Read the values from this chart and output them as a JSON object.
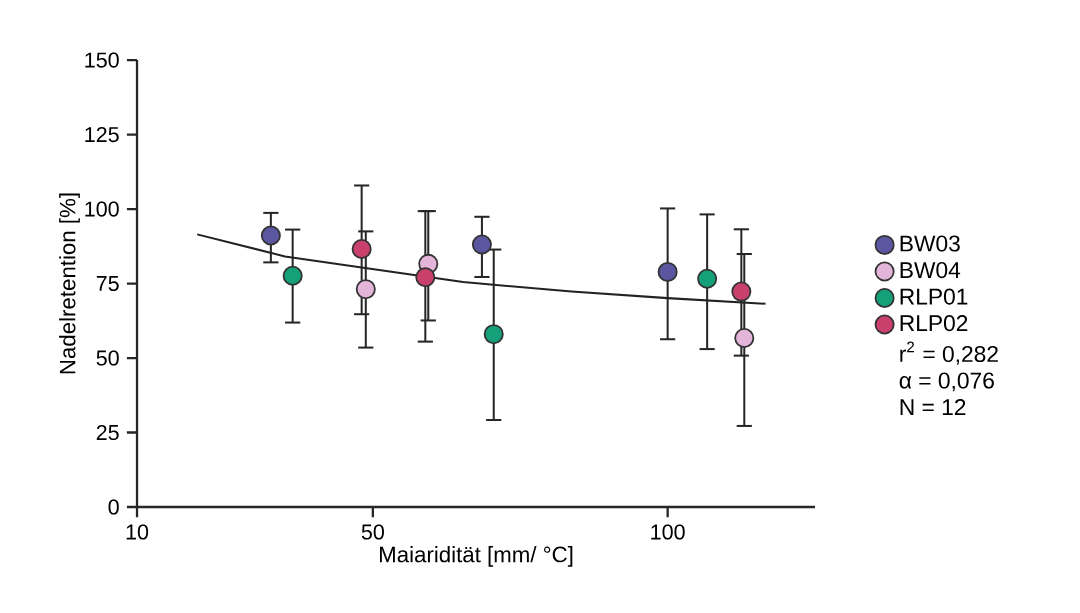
{
  "chart_data": {
    "type": "scatter",
    "xlabel": "Maiaridität [mm/ °C]",
    "ylabel": "Nadelretention [%]",
    "xlim": [
      10,
      125
    ],
    "ylim": [
      0,
      150
    ],
    "xticks": [
      10,
      50,
      100
    ],
    "yticks": [
      0,
      25,
      50,
      75,
      100,
      125,
      150
    ],
    "legend": "right",
    "grid": false,
    "series": [
      {
        "name": "BW03",
        "marker": "circle",
        "color": "#5b56a0",
        "x": [
          32.7,
          68.5,
          100
        ],
        "values": [
          91.1,
          88.1,
          78.9
        ],
        "errors": [
          [
            82.1,
            98.7
          ],
          [
            77.2,
            97.4
          ],
          [
            56.3,
            100.2
          ]
        ]
      },
      {
        "name": "BW04",
        "marker": "circle",
        "color": "#e3b5d9",
        "x": [
          48.8,
          59.4,
          113.0
        ],
        "values": [
          73.1,
          81.6,
          56.7
        ],
        "errors": [
          [
            53.5,
            92.5
          ],
          [
            62.6,
            99.3
          ],
          [
            27.2,
            84.9
          ]
        ]
      },
      {
        "name": "RLP01",
        "marker": "circle",
        "color": "#16a07a",
        "x": [
          36.4,
          70.5,
          106.7
        ],
        "values": [
          77.6,
          58.0,
          76.6
        ],
        "errors": [
          [
            61.9,
            93.1
          ],
          [
            29.2,
            86.4
          ],
          [
            53.0,
            98.2
          ]
        ]
      },
      {
        "name": "RLP02",
        "marker": "circle",
        "color": "#c9406c",
        "x": [
          48.1,
          58.9,
          112.5
        ],
        "values": [
          86.6,
          77.1,
          72.3
        ],
        "errors": [
          [
            64.7,
            107.9
          ],
          [
            55.5,
            99.3
          ],
          [
            50.8,
            93.2
          ]
        ]
      },
      {
        "type": "line",
        "marker": "none",
        "color": "#222222",
        "x": [
          20.2,
          35.1,
          48.7,
          65.3,
          83.7,
          100,
          116.6
        ],
        "values": [
          91.5,
          84.1,
          80.2,
          75.5,
          72.3,
          70.1,
          68.2
        ]
      }
    ],
    "annotations": [
      "r$^{2}$ = 0,282",
      "α = 0,076",
      "N = 12"
    ]
  }
}
